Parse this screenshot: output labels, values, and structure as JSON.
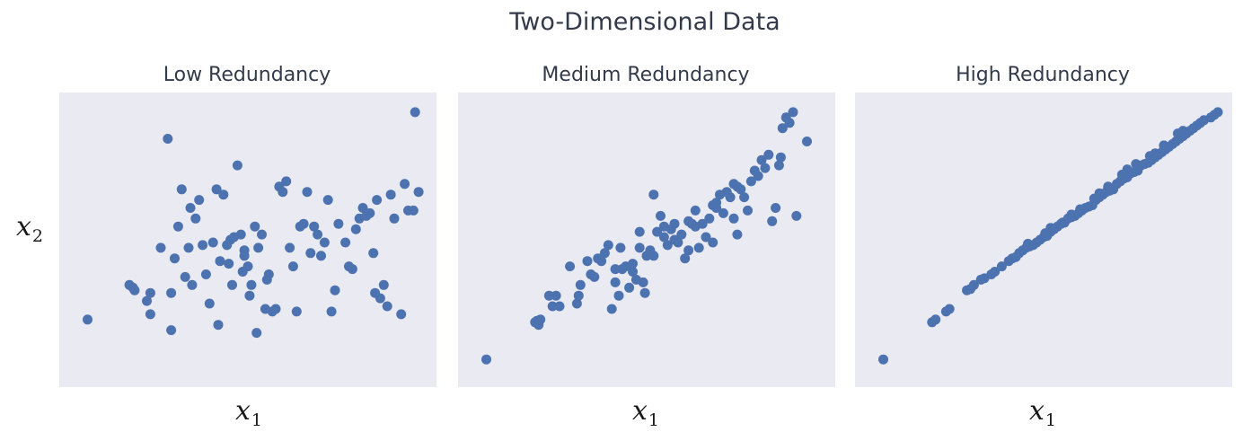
{
  "figure": {
    "title": "Two-Dimensional Data",
    "xlabel": {
      "main": "x",
      "sub": "1"
    },
    "ylabel": {
      "main": "x",
      "sub": "2"
    }
  },
  "colors": {
    "point": "#4c72b0",
    "panel_background": "#eaeaf2"
  },
  "chart_data": [
    {
      "type": "scatter",
      "title": "Low Redundancy",
      "xlabel": "x1",
      "ylabel": "x2",
      "ticks": "none",
      "grid": false,
      "xlim": [
        0,
        100
      ],
      "ylim": [
        0,
        100
      ],
      "x": [
        4,
        17,
        22,
        28,
        16,
        17.5,
        21,
        25,
        28,
        22,
        29,
        34,
        32,
        33.5,
        35,
        37,
        40,
        41,
        41.5,
        43,
        44.5,
        45.5,
        47,
        48,
        49,
        50,
        51,
        52,
        53,
        54,
        55,
        56,
        57,
        58,
        60,
        61,
        62,
        63,
        65,
        66,
        67,
        69,
        71,
        72,
        73,
        74,
        75,
        78,
        80,
        81,
        82,
        84,
        86,
        86.5,
        87,
        88,
        89,
        91,
        94,
        96,
        97.5,
        99,
        27,
        30,
        31,
        33,
        36,
        38,
        39,
        42,
        44,
        46,
        48.5,
        50.5,
        52.5,
        55.5,
        59,
        64,
        68,
        70,
        76,
        79,
        83,
        85,
        90,
        92,
        95,
        98,
        49,
        45
      ],
      "y": [
        20,
        32,
        30,
        16,
        33,
        31,
        27,
        47,
        30,
        22,
        43,
        33,
        36,
        62,
        58,
        48,
        49,
        69,
        18,
        67,
        41,
        33,
        78,
        52,
        46,
        40,
        33,
        55,
        47,
        52,
        24,
        37,
        23,
        24,
        68,
        72,
        47,
        40,
        55,
        56,
        68,
        55,
        44,
        49,
        65,
        23,
        31,
        49,
        39,
        54,
        58,
        59,
        45,
        30,
        65,
        28,
        33,
        67,
        22,
        61,
        61,
        68,
        88,
        55,
        69,
        47,
        65,
        37,
        26,
        42,
        48,
        51,
        38,
        29,
        15,
        35,
        70,
        23,
        45,
        52,
        56,
        40,
        62,
        60,
        25,
        58,
        71,
        98,
        44,
        50
      ],
      "point_count": 90
    },
    {
      "type": "scatter",
      "title": "Medium Redundancy",
      "xlabel": "x1",
      "ylabel": "x2",
      "ticks": "none",
      "grid": false,
      "xlim": [
        0,
        100
      ],
      "ylim": [
        0,
        100
      ],
      "x": [
        4,
        18,
        18.5,
        19,
        19.5,
        22,
        23,
        24,
        25,
        28,
        30,
        30.5,
        31,
        33,
        34,
        36,
        37,
        38,
        39,
        40,
        41,
        42,
        42.5,
        43,
        44,
        45,
        46,
        47,
        48,
        49,
        49.5,
        50,
        51,
        52,
        53,
        54,
        55,
        56,
        57,
        58,
        59,
        60,
        61,
        62,
        63,
        64,
        65,
        66,
        67,
        68,
        69,
        70,
        71,
        72,
        73,
        74,
        75,
        76,
        77,
        78,
        79,
        80,
        81,
        83,
        84,
        85,
        86,
        87,
        88,
        88.5,
        89,
        90,
        91,
        92,
        93,
        96,
        46,
        52,
        58,
        64,
        70,
        76,
        82,
        35,
        41,
        48,
        55,
        62,
        69,
        75
      ],
      "y": [
        5,
        19,
        19.5,
        18,
        20,
        29,
        25,
        29,
        25,
        40,
        26,
        29,
        33,
        42,
        37,
        43,
        42,
        45,
        48,
        24,
        34,
        29,
        47,
        39,
        40,
        32,
        41,
        35,
        53,
        34,
        30,
        44,
        46,
        67,
        53,
        59,
        55,
        48,
        54,
        56,
        49,
        52,
        43,
        46,
        56,
        61,
        47,
        56,
        51,
        58,
        49,
        64,
        67,
        60,
        68,
        66,
        58,
        52,
        69,
        66,
        61,
        72,
        76,
        80,
        77,
        82,
        57,
        62,
        78,
        81,
        92,
        96,
        94,
        98,
        59,
        87,
        38,
        44,
        50,
        55,
        62,
        70,
        74,
        36,
        39,
        47,
        51,
        57,
        63,
        71
      ],
      "point_count": 90
    },
    {
      "type": "scatter",
      "title": "High Redundancy",
      "xlabel": "x1",
      "ylabel": "x2",
      "ticks": "none",
      "grid": false,
      "xlim": [
        0,
        100
      ],
      "ylim": [
        0,
        100
      ],
      "x": [
        4,
        18,
        19,
        22,
        23,
        28,
        29,
        30,
        32,
        33,
        35,
        36,
        38,
        40,
        41,
        42,
        43,
        44,
        45,
        46,
        47,
        48,
        49,
        50,
        51,
        52,
        53,
        54,
        55,
        56,
        57,
        58,
        59,
        60,
        61,
        62,
        63,
        64,
        65,
        66,
        67,
        68,
        69,
        70,
        71,
        72,
        73,
        74,
        75,
        76,
        77,
        78,
        79,
        80,
        81,
        82,
        83,
        84,
        85,
        86,
        87,
        88,
        89,
        90,
        91,
        92,
        93,
        94,
        95,
        96,
        98,
        99,
        100,
        45.5,
        50.5,
        55.5,
        60.5,
        64.5,
        68.5,
        72.5,
        76.5,
        80.5,
        84.5,
        88.5,
        52,
        58,
        66,
        74,
        82,
        90
      ],
      "y": [
        5,
        19,
        20,
        23,
        24,
        31,
        31.5,
        33,
        35,
        35.5,
        37,
        38,
        40,
        42,
        43,
        43.5,
        45,
        46,
        47,
        47.5,
        48,
        49,
        50,
        51,
        51.5,
        53,
        54,
        55,
        56,
        56.5,
        58,
        58.5,
        59,
        60,
        61,
        62,
        62.5,
        63,
        65,
        66,
        67,
        68,
        68.5,
        69,
        71,
        72,
        73,
        73.5,
        75,
        75.5,
        76,
        78,
        78.5,
        79,
        80,
        81,
        82,
        83,
        84,
        85,
        86,
        87,
        88,
        89,
        90,
        91,
        92,
        93,
        94,
        95,
        96,
        97,
        98,
        48.5,
        52.5,
        56.5,
        61.5,
        65.5,
        70,
        74.5,
        78.5,
        81.5,
        85.5,
        90,
        54.5,
        59.5,
        67.5,
        76.5,
        82.5,
        91
      ],
      "point_count": 90
    }
  ]
}
